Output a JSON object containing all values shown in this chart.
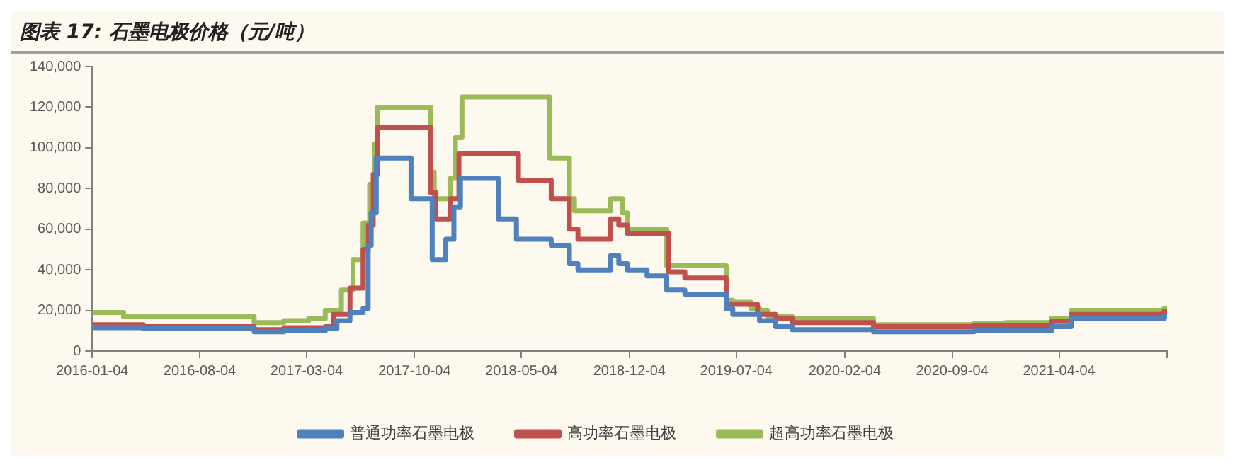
{
  "chart_data": {
    "type": "step",
    "title": "图表 17: 石墨电极价格（元/吨）",
    "xlim": [
      "2016-01-04",
      "2021-11-04"
    ],
    "xticks": [
      "2016-01-04",
      "2016-08-04",
      "2017-03-04",
      "2017-10-04",
      "2018-05-04",
      "2018-12-04",
      "2019-07-04",
      "2020-02-04",
      "2020-09-04",
      "2021-04-04",
      {
        "value": "2021-11-04",
        "label": null
      }
    ],
    "ylim": [
      0,
      140000
    ],
    "yticks": [
      {
        "value": 0,
        "label": "0"
      },
      {
        "value": 20000,
        "label": "20,000"
      },
      {
        "value": 40000,
        "label": "40,000"
      },
      {
        "value": 60000,
        "label": "60,000"
      },
      {
        "value": 80000,
        "label": "80,000"
      },
      {
        "value": 100000,
        "label": "100,000"
      },
      {
        "value": 120000,
        "label": "120,000"
      },
      {
        "value": 140000,
        "label": "140,000"
      }
    ],
    "grid": false,
    "legend": "bottom",
    "marker": "none",
    "line_style": "solid",
    "series": [
      {
        "name": "普通功率石墨电极",
        "color": "#4f81bd",
        "x": [
          "2016-01-04",
          "2016-04-14",
          "2016-11-20",
          "2017-01-18",
          "2017-04-10",
          "2017-05-03",
          "2017-05-29",
          "2017-06-24",
          "2017-07-04",
          "2017-07-10",
          "2017-07-20",
          "2017-09-27",
          "2017-11-08",
          "2017-12-05",
          "2017-12-21",
          "2018-01-03",
          "2018-03-19",
          "2018-04-24",
          "2018-07-02",
          "2018-08-07",
          "2018-08-24",
          "2018-10-28",
          "2018-11-13",
          "2018-11-30",
          "2019-01-08",
          "2019-02-16",
          "2019-03-24",
          "2019-06-14",
          "2019-06-27",
          "2019-08-19",
          "2019-09-20",
          "2019-10-23",
          "2020-04-01",
          "2020-10-17",
          "2021-03-20",
          "2021-04-28",
          "2021-10-29",
          "2021-11-04"
        ],
        "values": [
          11500,
          11000,
          9500,
          10000,
          11000,
          15000,
          19000,
          21000,
          52000,
          68000,
          95000,
          75000,
          45000,
          55000,
          71000,
          85000,
          65000,
          55000,
          52000,
          43000,
          40000,
          47000,
          43000,
          40000,
          37000,
          30000,
          28000,
          21000,
          18000,
          15000,
          12000,
          10500,
          9500,
          10000,
          12000,
          16000,
          17000,
          17000
        ]
      },
      {
        "name": "高功率石墨电极",
        "color": "#c0504d",
        "x": [
          "2016-01-04",
          "2016-04-14",
          "2016-11-20",
          "2017-01-18",
          "2017-04-10",
          "2017-04-26",
          "2017-05-29",
          "2017-06-24",
          "2017-07-04",
          "2017-07-14",
          "2017-07-23",
          "2017-11-05",
          "2017-11-15",
          "2017-12-14",
          "2017-12-31",
          "2018-04-28",
          "2018-07-02",
          "2018-08-07",
          "2018-08-24",
          "2018-10-28",
          "2018-11-13",
          "2018-11-30",
          "2019-02-20",
          "2019-03-24",
          "2019-06-14",
          "2019-08-15",
          "2019-09-20",
          "2019-10-23",
          "2020-04-01",
          "2020-10-17",
          "2021-03-20",
          "2021-04-28",
          "2021-10-29",
          "2021-11-04"
        ],
        "values": [
          13000,
          12000,
          10500,
          11500,
          12000,
          18000,
          31000,
          50000,
          62000,
          87000,
          110000,
          78000,
          65000,
          75000,
          97000,
          84000,
          75000,
          60000,
          55000,
          65000,
          62000,
          58000,
          39000,
          36000,
          23000,
          18000,
          16000,
          14000,
          12000,
          12500,
          14500,
          18000,
          19500,
          19500
        ]
      },
      {
        "name": "超高功率石墨电极",
        "color": "#9bbb59",
        "x": [
          "2016-01-04",
          "2016-03-06",
          "2016-11-20",
          "2017-01-18",
          "2017-03-08",
          "2017-04-10",
          "2017-05-12",
          "2017-06-04",
          "2017-06-24",
          "2017-07-07",
          "2017-07-17",
          "2017-07-23",
          "2017-11-05",
          "2017-11-12",
          "2017-12-14",
          "2017-12-24",
          "2018-01-06",
          "2018-06-29",
          "2018-08-07",
          "2018-08-17",
          "2018-10-28",
          "2018-11-20",
          "2018-11-30",
          "2019-02-16",
          "2019-06-14",
          "2019-06-27",
          "2019-08-02",
          "2019-08-19",
          "2019-09-04",
          "2019-10-23",
          "2020-04-01",
          "2020-10-17",
          "2020-12-19",
          "2021-03-20",
          "2021-04-28",
          "2021-10-29",
          "2021-11-04"
        ],
        "values": [
          19000,
          17000,
          14000,
          15000,
          16000,
          20000,
          30000,
          45000,
          63000,
          82000,
          102000,
          120000,
          88000,
          75000,
          85000,
          105000,
          125000,
          95000,
          75000,
          69000,
          75000,
          68000,
          60000,
          42000,
          25000,
          24000,
          21000,
          20000,
          17000,
          16000,
          13000,
          13500,
          14000,
          16000,
          20000,
          21000,
          22000
        ]
      }
    ]
  }
}
